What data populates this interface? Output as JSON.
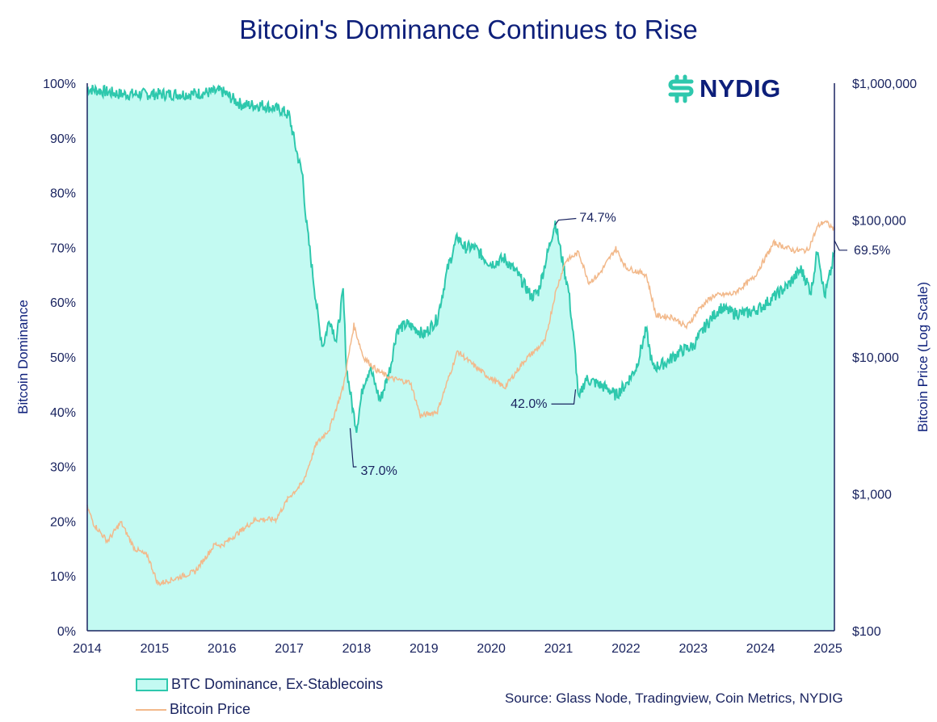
{
  "chart_data": {
    "type": "area",
    "title": "Bitcoin's Dominance Continues to Rise",
    "ylabel": "Bitcoin Dominance",
    "y2label": "Bitcoin Price (Log Scale)",
    "xlim": [
      2014,
      2025.1
    ],
    "ylim": [
      0,
      100
    ],
    "y2lim": [
      100,
      1000000
    ],
    "y2scale": "log",
    "grid": false,
    "legend_placement": "bottom-left",
    "x_ticks": [
      "2014",
      "2015",
      "2016",
      "2017",
      "2018",
      "2019",
      "2020",
      "2021",
      "2022",
      "2023",
      "2024",
      "2025"
    ],
    "y_ticks": [
      "0%",
      "10%",
      "20%",
      "30%",
      "40%",
      "50%",
      "60%",
      "70%",
      "80%",
      "90%",
      "100%"
    ],
    "y2_ticks": [
      "$100",
      "$1,000",
      "$10,000",
      "$100,000",
      "$1,000,000"
    ],
    "colors": {
      "dominance_fill": "#c3faf2",
      "dominance_line": "#2ec8ad",
      "price_line": "#f2b98b",
      "text": "#1a2460"
    },
    "series": [
      {
        "name": "BTC Dominance, Ex-Stablecoins",
        "axis": "left",
        "unit": "%",
        "x": [
          2014.0,
          2014.5,
          2015.0,
          2015.5,
          2016.0,
          2016.3,
          2016.6,
          2016.9,
          2017.0,
          2017.1,
          2017.2,
          2017.25,
          2017.35,
          2017.45,
          2017.5,
          2017.6,
          2017.7,
          2017.8,
          2017.85,
          2017.95,
          2018.0,
          2018.1,
          2018.2,
          2018.35,
          2018.5,
          2018.6,
          2018.75,
          2018.9,
          2019.0,
          2019.2,
          2019.35,
          2019.5,
          2019.6,
          2019.75,
          2019.9,
          2020.0,
          2020.2,
          2020.4,
          2020.6,
          2020.7,
          2020.8,
          2020.95,
          2021.05,
          2021.15,
          2021.25,
          2021.3,
          2021.4,
          2021.6,
          2021.75,
          2021.85,
          2022.0,
          2022.15,
          2022.3,
          2022.4,
          2022.6,
          2022.8,
          2023.0,
          2023.2,
          2023.4,
          2023.6,
          2023.8,
          2024.0,
          2024.2,
          2024.4,
          2024.6,
          2024.75,
          2024.85,
          2024.95,
          2025.05,
          2025.1
        ],
        "values": [
          99,
          98,
          98,
          98,
          98.5,
          96,
          96,
          95,
          94,
          88,
          83,
          75,
          65,
          55,
          52,
          57,
          53,
          62,
          48,
          40,
          37,
          45,
          48,
          42,
          48,
          55,
          56,
          55,
          54,
          57,
          66,
          72,
          70,
          70,
          68,
          67,
          68,
          65,
          61,
          62,
          67,
          74.7,
          68,
          62,
          50,
          42,
          46,
          45,
          44,
          43,
          45,
          48,
          55,
          48,
          49,
          51,
          52,
          56,
          59,
          58,
          58,
          59,
          61,
          63,
          66,
          62,
          70,
          61,
          66,
          69.5
        ]
      },
      {
        "name": "Bitcoin Price",
        "axis": "right",
        "unit": "USD",
        "x": [
          2014.0,
          2014.1,
          2014.3,
          2014.5,
          2014.7,
          2014.9,
          2015.05,
          2015.3,
          2015.6,
          2015.9,
          2016.0,
          2016.5,
          2016.8,
          2017.0,
          2017.2,
          2017.4,
          2017.6,
          2017.8,
          2017.96,
          2018.1,
          2018.3,
          2018.5,
          2018.8,
          2018.95,
          2019.2,
          2019.5,
          2019.7,
          2019.95,
          2020.2,
          2020.5,
          2020.8,
          2020.95,
          2021.1,
          2021.3,
          2021.45,
          2021.6,
          2021.85,
          2022.0,
          2022.3,
          2022.45,
          2022.7,
          2022.9,
          2023.1,
          2023.3,
          2023.6,
          2023.9,
          2024.2,
          2024.5,
          2024.7,
          2024.85,
          2024.95,
          2025.1
        ],
        "values": [
          800,
          600,
          450,
          620,
          400,
          350,
          220,
          240,
          270,
          430,
          420,
          650,
          650,
          950,
          1200,
          2300,
          3000,
          6000,
          17000,
          10000,
          8000,
          7000,
          6500,
          3700,
          4000,
          11000,
          9000,
          7200,
          6000,
          9500,
          13000,
          29000,
          50000,
          58000,
          35000,
          40000,
          62000,
          45000,
          40000,
          20000,
          19500,
          16500,
          23000,
          28000,
          29000,
          38000,
          68000,
          60000,
          60000,
          90000,
          98000,
          85000
        ]
      }
    ],
    "annotations": [
      {
        "x": 2018.0,
        "value": 37.0,
        "label": "37.0%"
      },
      {
        "x": 2020.95,
        "value": 74.7,
        "label": "74.7%"
      },
      {
        "x": 2021.3,
        "value": 42.0,
        "label": "42.0%"
      },
      {
        "x": 2025.1,
        "value": 69.5,
        "label": "69.5%"
      }
    ]
  },
  "logo": "NYDIG",
  "legend": [
    "BTC Dominance, Ex-Stablecoins",
    "Bitcoin Price"
  ],
  "source": "Source: Glass Node, Tradingview, Coin Metrics, NYDIG"
}
